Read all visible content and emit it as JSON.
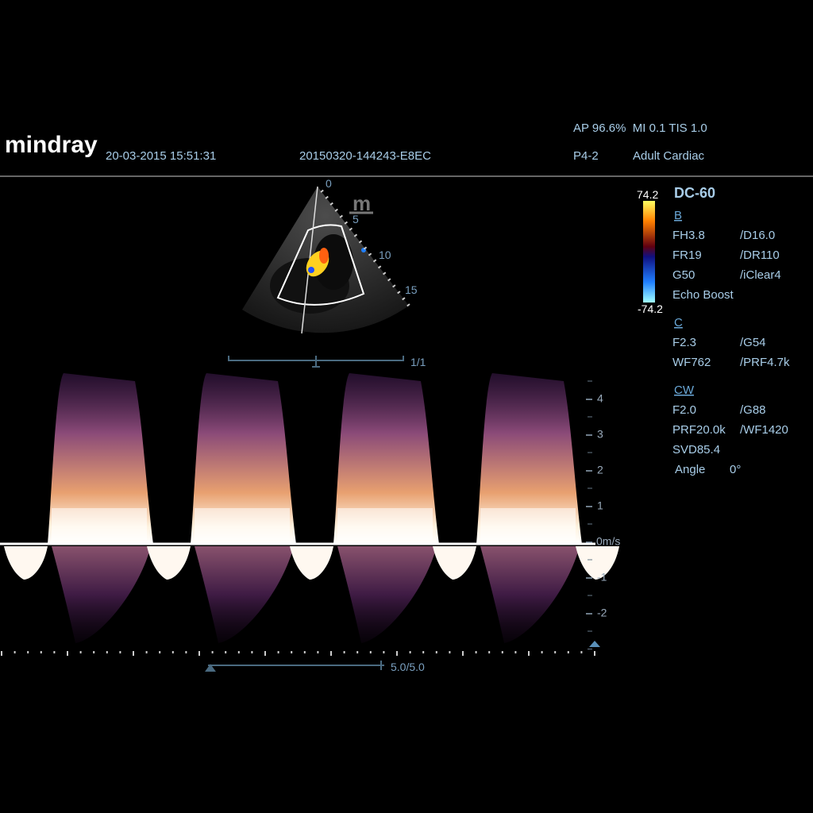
{
  "header": {
    "logo": "mindray",
    "datetime": "20-03-2015 15:51:31",
    "exam_id": "20150320-144243-E8EC",
    "acoustic": "AP 96.6%  MI 0.1 TIS 1.0",
    "probe": "P4-2",
    "preset": "Adult Cardiac"
  },
  "image": {
    "depth_marks": [
      "0",
      "5",
      "10",
      "15"
    ],
    "frame": "1/1"
  },
  "color_bar": {
    "max": "74.2",
    "min": "-74.2"
  },
  "params": {
    "mode": "DC-60",
    "sections": [
      {
        "title": "B",
        "rows": [
          [
            "FH3.8",
            "/D16.0"
          ],
          [
            "FR19",
            "/DR110"
          ],
          [
            "G50",
            "/iClear4"
          ],
          [
            "Echo Boost"
          ]
        ]
      },
      {
        "title": "C",
        "rows": [
          [
            "F2.3",
            "/G54"
          ],
          [
            "WF762",
            "/PRF4.7k"
          ]
        ]
      },
      {
        "title": "CW",
        "rows": [
          [
            "F2.0",
            "/G88"
          ],
          [
            "PRF20.0k",
            "/WF1420"
          ],
          [
            "SVD85.4"
          ],
          [
            "Angle",
            "0°"
          ]
        ]
      }
    ]
  },
  "spectrum": {
    "velocity_labels": [
      "4",
      "3",
      "2",
      "1",
      "0m/s",
      "-1",
      "-2"
    ],
    "sweep": "5.0/5.0"
  }
}
